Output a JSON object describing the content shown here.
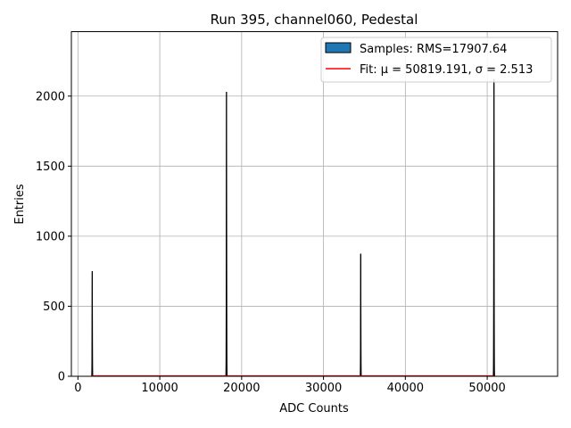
{
  "chart_data": {
    "type": "bar",
    "title": "Run 395, channel060, Pedestal",
    "xlabel": "ADC Counts",
    "ylabel": "Entries",
    "xlim": [
      -800,
      58600
    ],
    "ylim": [
      0,
      2460
    ],
    "xticks": [
      0,
      10000,
      20000,
      30000,
      40000,
      50000
    ],
    "yticks": [
      0,
      500,
      1000,
      1500,
      2000
    ],
    "grid": true,
    "legend_position": "top-right",
    "series": [
      {
        "name": "Samples: RMS=17907.64",
        "kind": "histogram",
        "color": "#1f77b4",
        "edge_color": "#000000",
        "peaks": [
          {
            "center": 1750,
            "height": 750,
            "width": 70
          },
          {
            "center": 18150,
            "height": 2030,
            "width": 80
          },
          {
            "center": 34550,
            "height": 875,
            "width": 70
          },
          {
            "center": 50820,
            "height": 2120,
            "width": 80
          }
        ]
      },
      {
        "name": "Fit: μ = 50819.191, σ = 2.513",
        "kind": "line",
        "color": "#ff0000",
        "x": [
          1700,
          50800
        ],
        "y": [
          2,
          2
        ]
      }
    ]
  }
}
